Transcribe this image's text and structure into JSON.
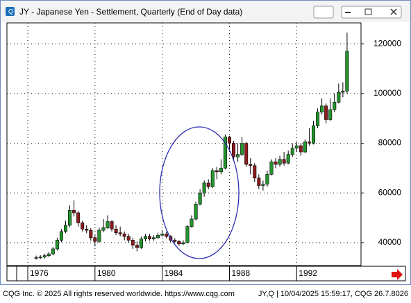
{
  "window": {
    "title": "JY - Japanese Yen - Settlement, Quarterly (End of Day data)"
  },
  "chart_data": {
    "type": "candlestick",
    "x": [
      1976.5,
      1976.75,
      1977,
      1977.25,
      1977.5,
      1977.75,
      1978,
      1978.25,
      1978.5,
      1978.75,
      1979,
      1979.25,
      1979.5,
      1979.75,
      1980,
      1980.25,
      1980.5,
      1980.75,
      1981,
      1981.25,
      1981.5,
      1981.75,
      1982,
      1982.25,
      1982.5,
      1982.75,
      1983,
      1983.25,
      1983.5,
      1983.75,
      1984,
      1984.25,
      1984.5,
      1984.75,
      1985,
      1985.25,
      1985.5,
      1985.75,
      1986,
      1986.25,
      1986.5,
      1986.75,
      1987,
      1987.25,
      1987.5,
      1987.75,
      1988,
      1988.25,
      1988.5,
      1988.75,
      1989,
      1989.25,
      1989.5,
      1989.75,
      1990,
      1990.25,
      1990.5,
      1990.75,
      1991,
      1991.25,
      1991.5,
      1991.75,
      1992,
      1992.25,
      1992.5,
      1992.75,
      1993,
      1993.25,
      1993.5,
      1993.75,
      1994,
      1994.25,
      1994.5,
      1994.75,
      1995
    ],
    "open": [
      33800,
      34000,
      34200,
      34800,
      35500,
      37500,
      41000,
      44500,
      47000,
      53000,
      52000,
      48000,
      45500,
      45000,
      42000,
      40500,
      45000,
      46000,
      48500,
      45500,
      44000,
      43500,
      42500,
      41000,
      39000,
      38000,
      41500,
      42500,
      41500,
      42000,
      43000,
      43500,
      42500,
      41000,
      40500,
      39500,
      40000,
      46500,
      49500,
      55500,
      60000,
      64000,
      62500,
      69000,
      68500,
      70000,
      82500,
      80000,
      74500,
      75500,
      80000,
      71500,
      71000,
      66000,
      63000,
      63500,
      67500,
      72500,
      71500,
      73500,
      72000,
      75500,
      78000,
      79000,
      76500,
      80500,
      80000,
      87000,
      92500,
      95000,
      89500,
      93500,
      96500,
      100500,
      101000
    ],
    "high": [
      34800,
      35000,
      35600,
      36300,
      38300,
      42000,
      45500,
      48800,
      55000,
      57000,
      52800,
      48800,
      47000,
      45800,
      43000,
      46000,
      49500,
      51000,
      49000,
      47000,
      46500,
      44500,
      43500,
      42000,
      40500,
      42500,
      43500,
      43500,
      43000,
      44000,
      45000,
      44500,
      43000,
      41800,
      41000,
      41000,
      47000,
      51000,
      56500,
      61500,
      65000,
      65500,
      70000,
      70500,
      73500,
      83500,
      83000,
      81000,
      80000,
      82500,
      80500,
      74000,
      72000,
      67500,
      65000,
      69000,
      73500,
      74000,
      75000,
      76500,
      77000,
      80000,
      80500,
      80000,
      81500,
      86000,
      89000,
      94000,
      98000,
      96000,
      98000,
      100000,
      104000,
      104500,
      124500
    ],
    "low": [
      33200,
      33400,
      33600,
      34200,
      34900,
      36800,
      40200,
      43800,
      46200,
      50500,
      46500,
      44500,
      43800,
      40800,
      38500,
      40000,
      44200,
      45500,
      44500,
      43000,
      42500,
      41000,
      40000,
      37500,
      36500,
      37500,
      40500,
      40800,
      40800,
      41500,
      42500,
      41800,
      40200,
      39800,
      38800,
      39000,
      39800,
      46000,
      49000,
      55000,
      58500,
      61500,
      62000,
      65500,
      67500,
      69500,
      77000,
      73000,
      72500,
      74800,
      70500,
      67500,
      64500,
      61500,
      61000,
      62500,
      67000,
      70000,
      70500,
      71000,
      71500,
      74500,
      76500,
      75000,
      76000,
      79000,
      79500,
      86000,
      91500,
      88000,
      89000,
      92500,
      96000,
      98500,
      100000
    ],
    "close": [
      34000,
      34200,
      34800,
      35500,
      37500,
      41000,
      44500,
      47000,
      53000,
      52000,
      48000,
      45500,
      45000,
      42000,
      40500,
      45000,
      46000,
      48500,
      45500,
      44000,
      43500,
      42500,
      41000,
      39000,
      38000,
      41500,
      42500,
      41500,
      42000,
      43000,
      43500,
      42500,
      41000,
      40500,
      39500,
      40000,
      46500,
      49500,
      55500,
      60000,
      64000,
      62500,
      69000,
      68500,
      70000,
      82500,
      80000,
      74500,
      75500,
      80000,
      71500,
      71000,
      66000,
      63000,
      63500,
      67500,
      72500,
      71500,
      73500,
      72000,
      75500,
      78000,
      79000,
      76500,
      80500,
      80000,
      87000,
      92500,
      95000,
      89500,
      93500,
      96500,
      100500,
      101000,
      117000
    ],
    "up_color": "#23962d",
    "down_color": "#8e1b1b",
    "xlim": [
      1974.76,
      1995.83
    ],
    "xticks": [
      1976,
      1980,
      1984,
      1988,
      1992
    ],
    "ylim": [
      30800,
      128400
    ],
    "yticks": [
      40000,
      60000,
      80000,
      100000,
      120000
    ],
    "grid": true
  },
  "footer": {
    "copyright": "CQG Inc. © 2025 All rights reserved worldwide. https://www.cqg.com",
    "status": "JY,Q | 10/04/2025 15:59:17, CQG 26.7.8026"
  }
}
